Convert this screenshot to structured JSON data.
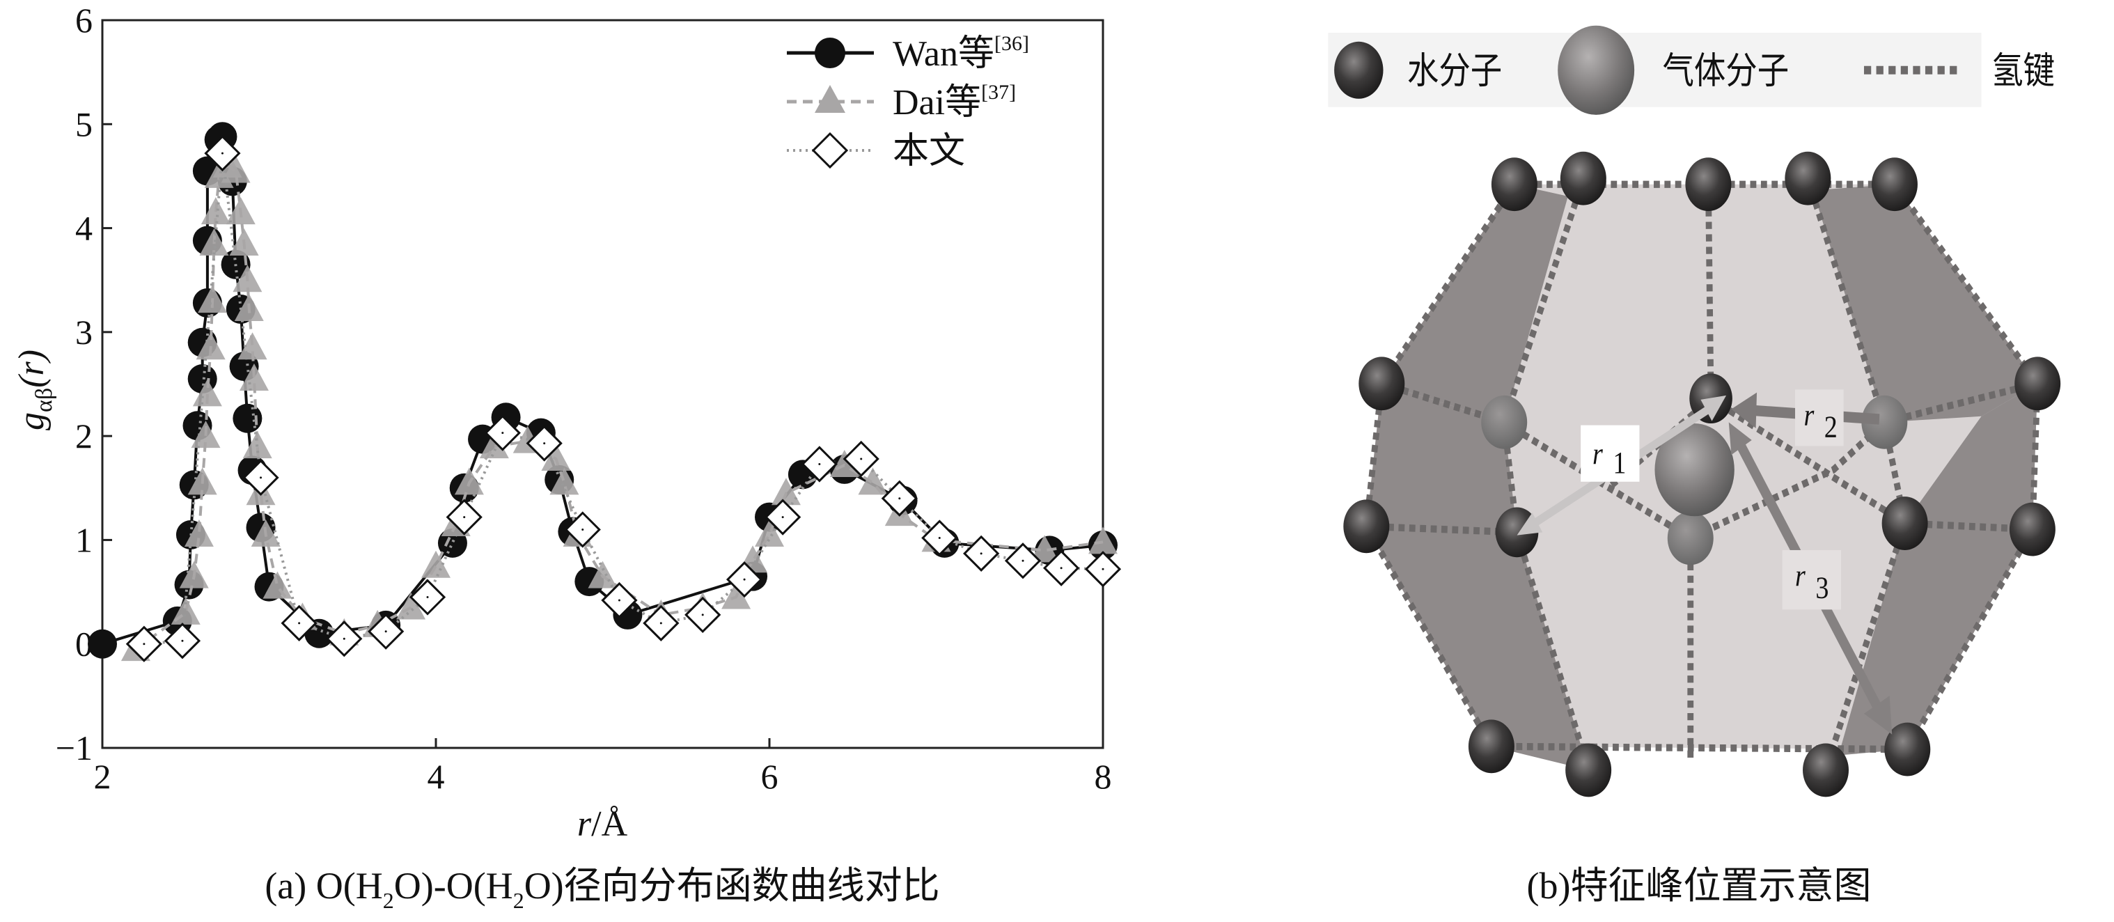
{
  "chart_data": {
    "type": "line",
    "xlabel": {
      "var": "r",
      "unit": "/Å"
    },
    "ylabel": {
      "main": "g",
      "sub": "αβ",
      "arg": "(r)"
    },
    "xlim": [
      2,
      8
    ],
    "ylim": [
      -1,
      6
    ],
    "xticks": [
      "2",
      "4",
      "6",
      "8"
    ],
    "yticks": [
      "−1",
      "0",
      "1",
      "2",
      "3",
      "4",
      "5",
      "6"
    ],
    "grid": false,
    "legend_position": "top-right",
    "series": [
      {
        "name": "Wan等",
        "ref": "[36]",
        "marker": "circle",
        "line": "solid",
        "color": "#111111",
        "x": [
          2.0,
          2.45,
          2.52,
          2.53,
          2.55,
          2.57,
          2.6,
          2.6,
          2.63,
          2.63,
          2.63,
          2.7,
          2.72,
          2.78,
          2.8,
          2.83,
          2.85,
          2.87,
          2.9,
          2.95,
          3.0,
          3.3,
          3.7,
          4.1,
          4.17,
          4.28,
          4.42,
          4.63,
          4.74,
          4.82,
          4.92,
          5.15,
          5.9,
          6.0,
          6.2,
          6.45,
          6.8,
          7.05,
          7.68,
          8.0
        ],
        "y": [
          0,
          0.22,
          0.57,
          1.05,
          1.53,
          2.1,
          2.55,
          2.9,
          3.28,
          3.88,
          4.55,
          4.85,
          4.88,
          4.45,
          3.65,
          3.22,
          2.67,
          2.17,
          1.67,
          1.12,
          0.55,
          0.1,
          0.18,
          0.97,
          1.5,
          1.97,
          2.18,
          2.03,
          1.58,
          1.08,
          0.6,
          0.28,
          0.65,
          1.22,
          1.63,
          1.68,
          1.38,
          0.97,
          0.9,
          0.95
        ]
      },
      {
        "name": "Dai等",
        "ref": "[37]",
        "marker": "triangle",
        "line": "dashed",
        "color": "#a8a6a6",
        "x": [
          2.2,
          2.5,
          2.55,
          2.58,
          2.6,
          2.62,
          2.63,
          2.65,
          2.66,
          2.67,
          2.68,
          2.7,
          2.75,
          2.8,
          2.83,
          2.85,
          2.87,
          2.88,
          2.9,
          2.91,
          2.93,
          2.95,
          2.98,
          3.05,
          3.2,
          3.45,
          3.65,
          3.85,
          4.0,
          4.12,
          4.2,
          4.35,
          4.55,
          4.72,
          4.77,
          4.85,
          5.0,
          5.35,
          5.6,
          5.8,
          5.9,
          6.0,
          6.1,
          6.45,
          6.62,
          6.78,
          7.0,
          7.65,
          8.0
        ],
        "y": [
          -0.05,
          0.3,
          0.65,
          1.05,
          1.55,
          2.0,
          2.4,
          2.85,
          3.3,
          3.85,
          4.15,
          4.5,
          4.6,
          4.55,
          4.15,
          3.85,
          3.5,
          3.22,
          2.85,
          2.55,
          1.9,
          1.45,
          1.05,
          0.55,
          0.25,
          0.1,
          0.18,
          0.35,
          0.75,
          1.15,
          1.55,
          1.9,
          1.95,
          1.78,
          1.55,
          1.05,
          0.65,
          0.28,
          0.35,
          0.45,
          0.8,
          1.05,
          1.45,
          1.72,
          1.55,
          1.25,
          1.0,
          0.9,
          0.98
        ]
      },
      {
        "name": "本文",
        "marker": "diamond",
        "line": "dotted",
        "color": "#999999",
        "x": [
          2.25,
          2.48,
          2.72,
          2.95,
          3.18,
          3.45,
          3.7,
          3.95,
          4.17,
          4.4,
          4.65,
          4.88,
          5.1,
          5.35,
          5.6,
          5.85,
          6.08,
          6.3,
          6.55,
          6.78,
          7.02,
          7.27,
          7.52,
          7.75,
          8.0
        ],
        "y": [
          0,
          0.03,
          4.72,
          1.6,
          0.2,
          0.05,
          0.12,
          0.45,
          1.22,
          2.03,
          1.93,
          1.1,
          0.42,
          0.2,
          0.28,
          0.62,
          1.22,
          1.73,
          1.78,
          1.4,
          1.02,
          0.87,
          0.8,
          0.73,
          0.72
        ]
      }
    ]
  },
  "caption_a": {
    "p1": "(a) O(H",
    "s1": "2",
    "p2": "O)-O(H",
    "s2": "2",
    "p3": "O)径向分布函数曲线对比"
  },
  "panel_b": {
    "legend": {
      "water": "水分子",
      "gas": "气体分子",
      "hbond": "氢键"
    },
    "labels": {
      "r1": "r",
      "r1_sub": "1",
      "r2": "r",
      "r2_sub": "2",
      "r3": "r",
      "r3_sub": "3"
    },
    "caption": "(b)特征峰位置示意图",
    "colors": {
      "face_light": "#d9d4d4",
      "face_dark": "#8f8a8a",
      "water": "#3a3838",
      "gas": "#7a7777",
      "hbond": "#6d6a6a"
    }
  }
}
